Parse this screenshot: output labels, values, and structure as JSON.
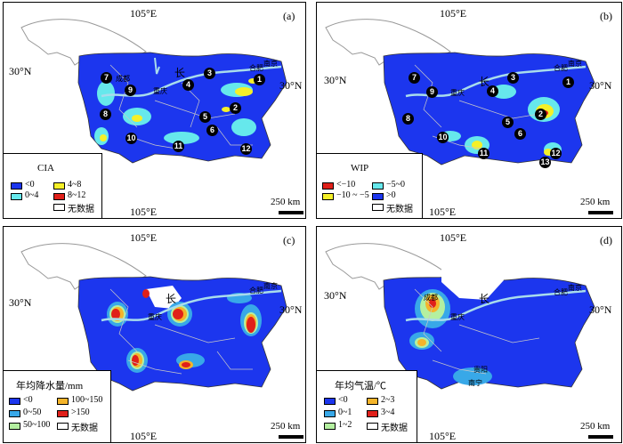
{
  "colors": {
    "blue": "#1c36ee",
    "cyan": "#66e8ec",
    "yellow": "#f5f028",
    "red": "#e0201a",
    "orange": "#f4b42a",
    "lightblue": "#38a8e8",
    "lightgreen": "#b4f0a0",
    "river": "#a8dcec",
    "nodata": "#ffffff"
  },
  "panels": [
    {
      "letter": "(a)",
      "lon_top": "105°E",
      "lon_bottom": "105°E",
      "lat_left": "30°N",
      "lat_right": "30°N",
      "scale": "250 km",
      "legend": {
        "title": "CIA",
        "items": [
          {
            "label": "<0",
            "color": "#1c36ee"
          },
          {
            "label": "4~8",
            "color": "#f5f028"
          },
          {
            "label": "0~4",
            "color": "#66e8ec"
          },
          {
            "label": "8~12",
            "color": "#e0201a"
          },
          {
            "label": "无数据",
            "color": "#ffffff"
          }
        ]
      },
      "cities": [
        "合肥",
        "南京",
        "成都",
        "重庆",
        "长"
      ],
      "numbers": [
        "1",
        "2",
        "3",
        "4",
        "5",
        "6",
        "7",
        "8",
        "9",
        "10",
        "11",
        "12"
      ]
    },
    {
      "letter": "(b)",
      "lon_top": "105°E",
      "lon_bottom": "105°E",
      "lat_left": "30°N",
      "lat_right": "30°N",
      "scale": "250 km",
      "legend": {
        "title": "WIP",
        "items": [
          {
            "label": "<−10",
            "color": "#e0201a"
          },
          {
            "label": "−5~0",
            "color": "#66e8ec"
          },
          {
            "label": "−10 ~ −5",
            "color": "#f5f028"
          },
          {
            "label": ">0",
            "color": "#1c36ee"
          },
          {
            "label": "无数据",
            "color": "#ffffff"
          }
        ]
      },
      "cities": [
        "合肥",
        "南京",
        "重庆",
        "长"
      ],
      "numbers": [
        "1",
        "2",
        "3",
        "4",
        "5",
        "6",
        "7",
        "8",
        "9",
        "10",
        "11",
        "12",
        "13"
      ]
    },
    {
      "letter": "(c)",
      "lon_top": "105°E",
      "lon_bottom": "105°E",
      "lat_left": "30°N",
      "lat_right": "30°N",
      "scale": "250 km",
      "legend": {
        "title": "年均降水量/mm",
        "items": [
          {
            "label": "<0",
            "color": "#1c36ee"
          },
          {
            "label": "100~150",
            "color": "#f4b42a"
          },
          {
            "label": "0~50",
            "color": "#38a8e8"
          },
          {
            "label": ">150",
            "color": "#e0201a"
          },
          {
            "label": "50~100",
            "color": "#b4f0a0"
          },
          {
            "label": "无数据",
            "color": "#ffffff"
          }
        ]
      },
      "cities": [
        "合肥",
        "南京",
        "重庆",
        "长"
      ]
    },
    {
      "letter": "(d)",
      "lon_top": "105°E",
      "lon_bottom": "105°E",
      "lat_left": "30°N",
      "lat_right": "30°N",
      "scale": "250 km",
      "legend": {
        "title": "年均气温/℃",
        "items": [
          {
            "label": "<0",
            "color": "#1c36ee"
          },
          {
            "label": "2~3",
            "color": "#f4b42a"
          },
          {
            "label": "0~1",
            "color": "#38a8e8"
          },
          {
            "label": "3~4",
            "color": "#e0201a"
          },
          {
            "label": "1~2",
            "color": "#b4f0a0"
          },
          {
            "label": "无数据",
            "color": "#ffffff"
          }
        ]
      },
      "cities": [
        "合肥",
        "南京",
        "成都",
        "重庆",
        "长",
        "南宁",
        "贵阳"
      ]
    }
  ]
}
